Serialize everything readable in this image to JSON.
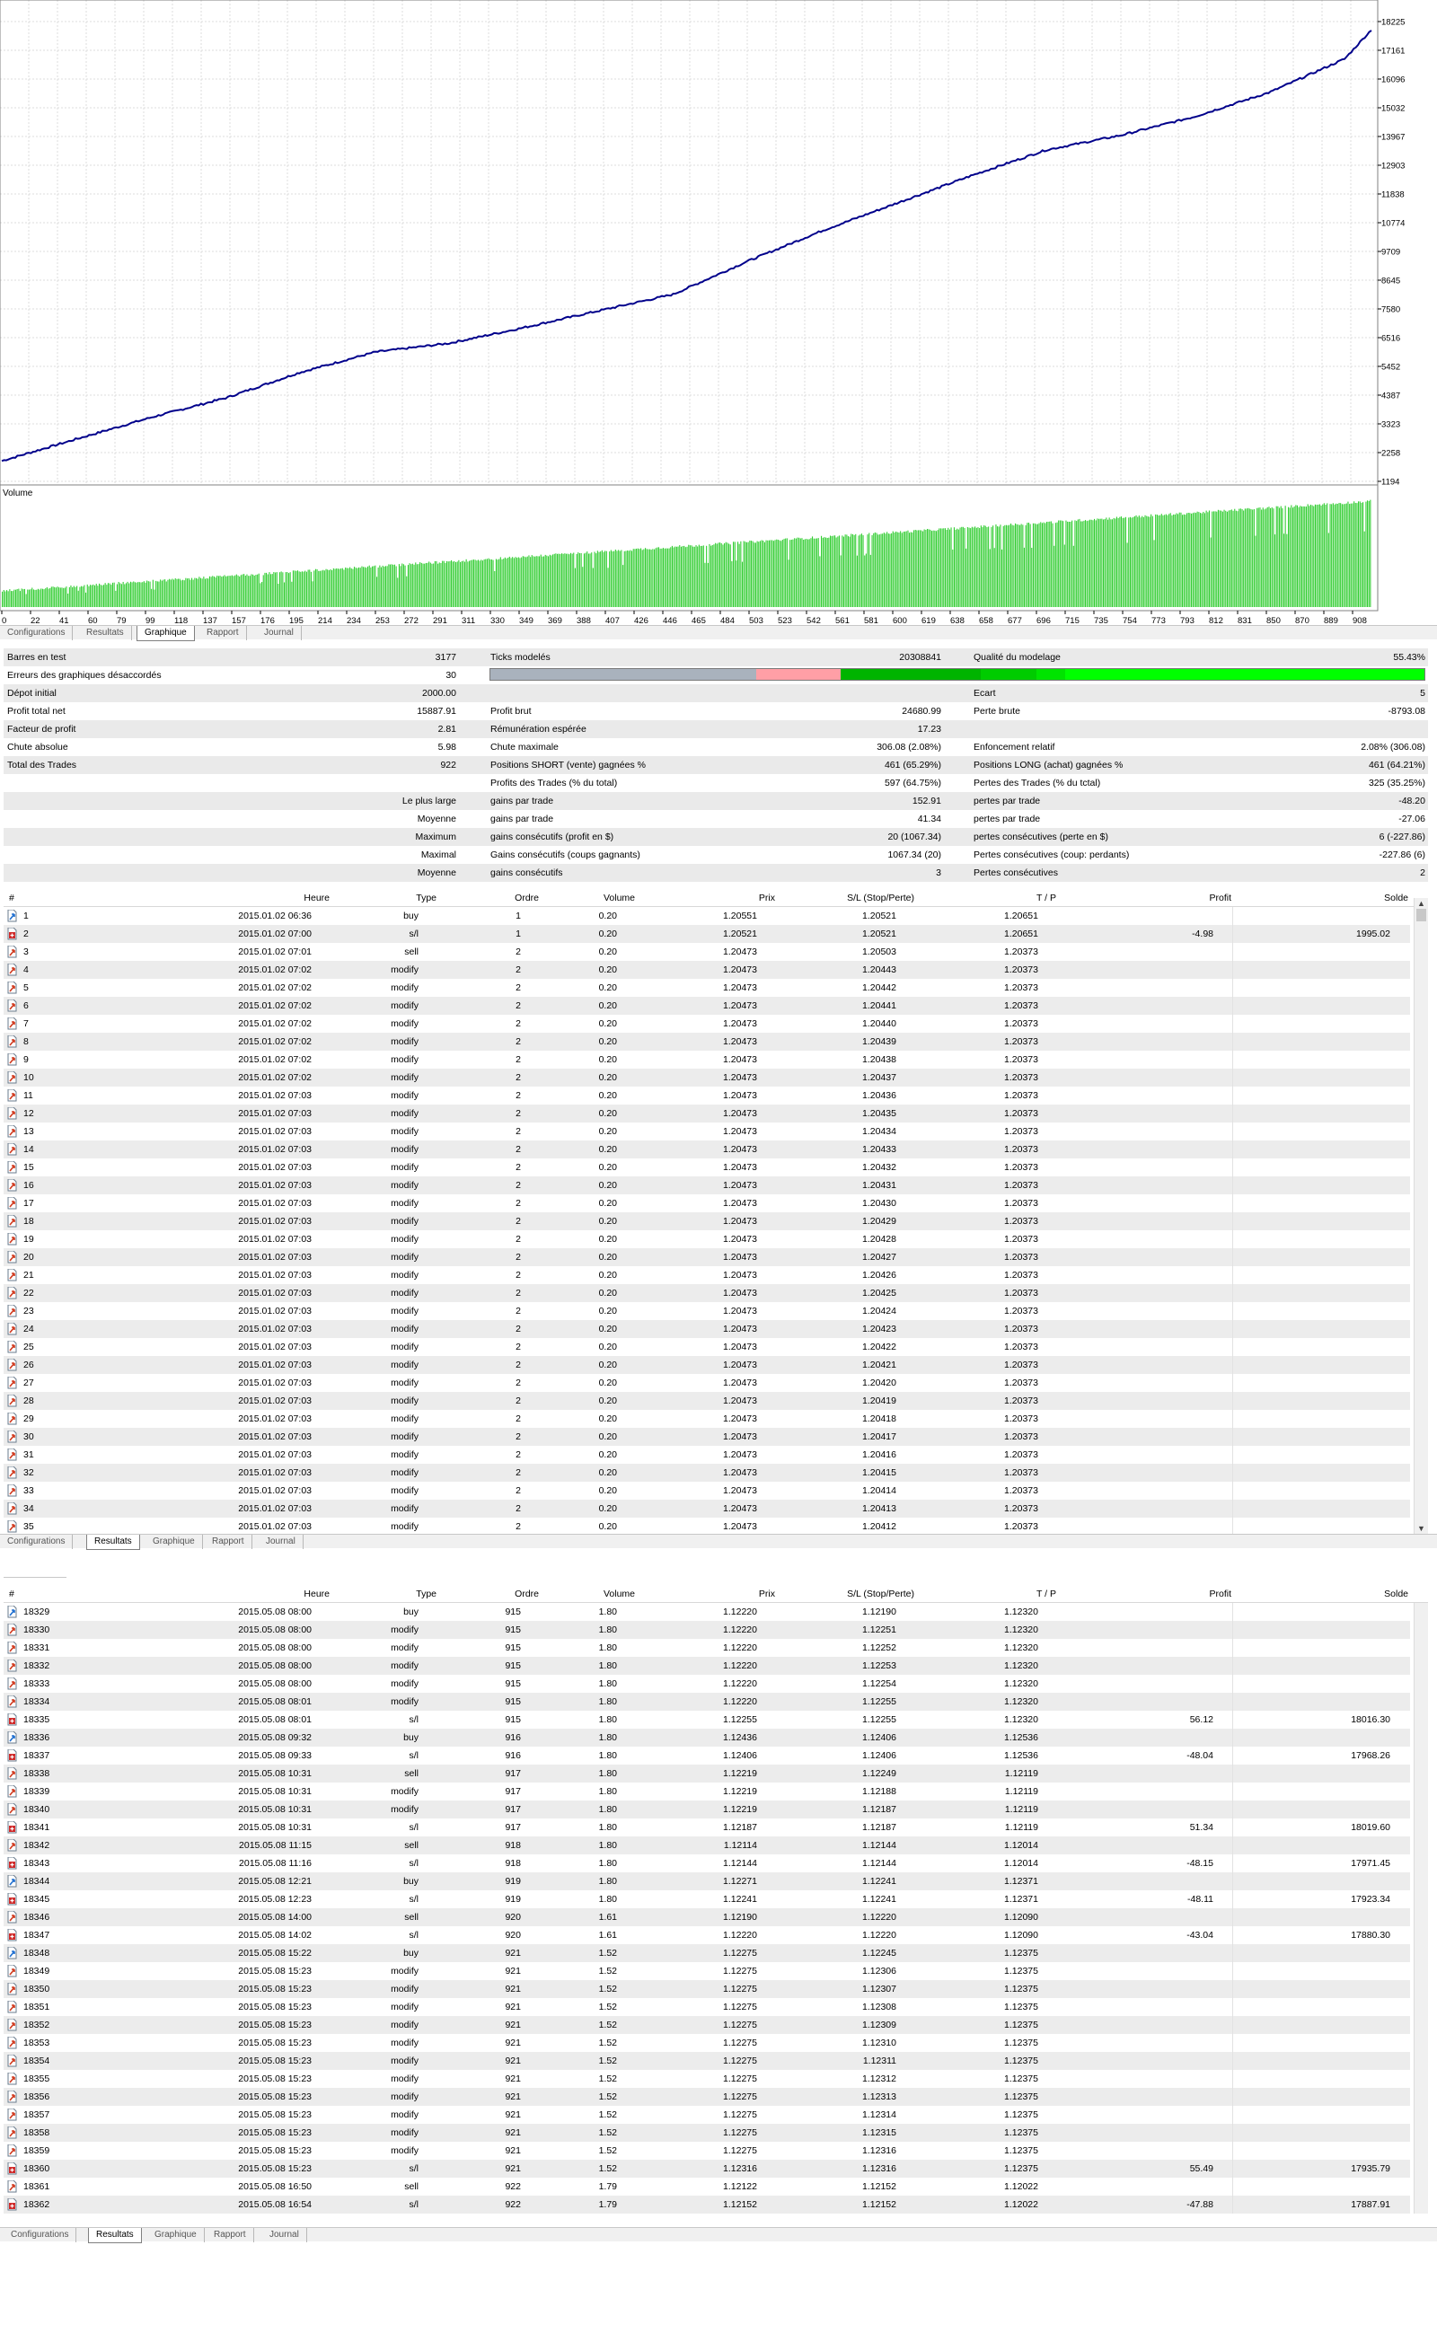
{
  "chart": {
    "equity_axis_labels": [
      "18225",
      "17161",
      "16096",
      "15032",
      "13967",
      "12903",
      "11838",
      "10774",
      "9709",
      "8645",
      "7580",
      "6516",
      "5452",
      "4387",
      "3323",
      "2258",
      "1194"
    ],
    "volume_label": "Volume",
    "x_axis_labels": [
      "0",
      "22",
      "41",
      "60",
      "79",
      "99",
      "118",
      "137",
      "157",
      "176",
      "195",
      "214",
      "234",
      "253",
      "272",
      "291",
      "311",
      "330",
      "349",
      "369",
      "388",
      "407",
      "426",
      "446",
      "465",
      "484",
      "503",
      "523",
      "542",
      "561",
      "581",
      "600",
      "619",
      "638",
      "658",
      "677",
      "696",
      "715",
      "735",
      "754",
      "773",
      "793",
      "812",
      "831",
      "850",
      "870",
      "889",
      "908"
    ],
    "equity_color": "#00008b",
    "volume_color": "#32cd32",
    "grid_color": "#dcdcdc"
  },
  "chart_data": {
    "type": "line",
    "series": [
      {
        "name": "",
        "x": [
          0,
          50,
          100,
          150,
          200,
          250,
          300,
          350,
          400,
          450,
          500,
          550,
          600,
          650,
          700,
          750,
          800,
          850,
          900,
          918
        ],
        "values": [
          1950,
          2760,
          3560,
          4280,
          5230,
          5980,
          6310,
          6890,
          7510,
          8120,
          9350,
          10480,
          11500,
          12520,
          13470,
          14010,
          14710,
          15610,
          16840,
          17920
        ]
      }
    ],
    "ylim": [
      1194,
      18225
    ],
    "xlim": [
      0,
      918
    ]
  },
  "tabs_top": [
    "Configurations",
    "Resultats",
    "Graphique",
    "Rapport",
    "Journal"
  ],
  "report": {
    "rows": [
      {
        "c1": "Barres en test",
        "v1": "3177",
        "c2": "Ticks modelés",
        "v2": "20308841",
        "c3": "Qualité du modelage",
        "v3": "55.43%"
      },
      {
        "c1": "Erreurs des graphiques désaccordés",
        "v1": "30",
        "c2": "",
        "v2": "",
        "c3": "",
        "v3": ""
      },
      {
        "c1": "Dépot initial",
        "v1": "2000.00",
        "c2": "",
        "v2": "",
        "c3": "Ecart",
        "v3": "5"
      },
      {
        "c1": "Profit total net",
        "v1": "15887.91",
        "c2": "Profit brut",
        "v2": "24680.99",
        "c3": "Perte brute",
        "v3": "-8793.08"
      },
      {
        "c1": "Facteur de profit",
        "v1": "2.81",
        "c2": "Rémunération espérée",
        "v2": "17.23",
        "c3": "",
        "v3": ""
      },
      {
        "c1": "Chute absolue",
        "v1": "5.98",
        "c2": "Chute maximale",
        "v2": "306.08 (2.08%)",
        "c3": "Enfoncement relatif",
        "v3": "2.08% (306.08)"
      },
      {
        "c1": "Total des Trades",
        "v1": "922",
        "c2": "Positions SHORT (vente) gagnées %",
        "v2": "461 (65.29%)",
        "c3": "Positions LONG (achat) gagnées %",
        "v3": "461 (64.21%)"
      },
      {
        "c1": "",
        "v1": "",
        "c2": "Profits des Trades (% du total)",
        "v2": "597 (64.75%)",
        "c3": "Pertes des Trades (% du tctal)",
        "v3": "325 (35.25%)"
      },
      {
        "c1": "",
        "v1": "Le plus large",
        "c2": "gains par trade",
        "v2": "152.91",
        "c3": "pertes par trade",
        "v3": "-48.20"
      },
      {
        "c1": "",
        "v1": "Moyenne",
        "c2": "gains par trade",
        "v2": "41.34",
        "c3": "pertes par trade",
        "v3": "-27.06"
      },
      {
        "c1": "",
        "v1": "Maximum",
        "c2": "gains consécutifs (profit en $)",
        "v2": "20 (1067.34)",
        "c3": "pertes consécutives (perte en $)",
        "v3": "6 (-227.86)"
      },
      {
        "c1": "",
        "v1": "Maximal",
        "c2": "Gains consécutifs (coups gagnants)",
        "v2": "1067.34 (20)",
        "c3": "Pertes consécutives (coup: perdants)",
        "v3": "-227.86 (6)"
      },
      {
        "c1": "",
        "v1": "Moyenne",
        "c2": "gains consécutifs",
        "v2": "3",
        "c3": "Pertes consécutives",
        "v3": "2"
      }
    ],
    "quality_colors": [
      "#a9b2bd",
      "#ff9fa6",
      "#00b400",
      "#00cc00",
      "#00e400",
      "#00ff00"
    ],
    "quality_fractions": [
      0.285,
      0.09,
      0.15,
      0.06,
      0.03,
      0.385
    ]
  },
  "table_headers": {
    "n": "#",
    "time": "Heure",
    "type": "Type",
    "order": "Ordre",
    "volume": "Volume",
    "price": "Prix",
    "sl": "S/L (Stop/Perte)",
    "tp": "T / P",
    "profit": "Profit",
    "balance": "Solde"
  },
  "table1": {
    "rows": [
      [
        "1",
        "2015.01.02 06:36",
        "buy",
        "1",
        "0.20",
        "1.20551",
        "1.20521",
        "1.20651",
        "",
        ""
      ],
      [
        "2",
        "2015.01.02 07:00",
        "s/l",
        "1",
        "0.20",
        "1.20521",
        "1.20521",
        "1.20651",
        "-4.98",
        "1995.02"
      ],
      [
        "3",
        "2015.01.02 07:01",
        "sell",
        "2",
        "0.20",
        "1.20473",
        "1.20503",
        "1.20373",
        "",
        ""
      ],
      [
        "4",
        "2015.01.02 07:02",
        "modify",
        "2",
        "0.20",
        "1.20473",
        "1.20443",
        "1.20373",
        "",
        ""
      ],
      [
        "5",
        "2015.01.02 07:02",
        "modify",
        "2",
        "0.20",
        "1.20473",
        "1.20442",
        "1.20373",
        "",
        ""
      ],
      [
        "6",
        "2015.01.02 07:02",
        "modify",
        "2",
        "0.20",
        "1.20473",
        "1.20441",
        "1.20373",
        "",
        ""
      ],
      [
        "7",
        "2015.01.02 07:02",
        "modify",
        "2",
        "0.20",
        "1.20473",
        "1.20440",
        "1.20373",
        "",
        ""
      ],
      [
        "8",
        "2015.01.02 07:02",
        "modify",
        "2",
        "0.20",
        "1.20473",
        "1.20439",
        "1.20373",
        "",
        ""
      ],
      [
        "9",
        "2015.01.02 07:02",
        "modify",
        "2",
        "0.20",
        "1.20473",
        "1.20438",
        "1.20373",
        "",
        ""
      ],
      [
        "10",
        "2015.01.02 07:02",
        "modify",
        "2",
        "0.20",
        "1.20473",
        "1.20437",
        "1.20373",
        "",
        ""
      ],
      [
        "11",
        "2015.01.02 07:03",
        "modify",
        "2",
        "0.20",
        "1.20473",
        "1.20436",
        "1.20373",
        "",
        ""
      ],
      [
        "12",
        "2015.01.02 07:03",
        "modify",
        "2",
        "0.20",
        "1.20473",
        "1.20435",
        "1.20373",
        "",
        ""
      ],
      [
        "13",
        "2015.01.02 07:03",
        "modify",
        "2",
        "0.20",
        "1.20473",
        "1.20434",
        "1.20373",
        "",
        ""
      ],
      [
        "14",
        "2015.01.02 07:03",
        "modify",
        "2",
        "0.20",
        "1.20473",
        "1.20433",
        "1.20373",
        "",
        ""
      ],
      [
        "15",
        "2015.01.02 07:03",
        "modify",
        "2",
        "0.20",
        "1.20473",
        "1.20432",
        "1.20373",
        "",
        ""
      ],
      [
        "16",
        "2015.01.02 07:03",
        "modify",
        "2",
        "0.20",
        "1.20473",
        "1.20431",
        "1.20373",
        "",
        ""
      ],
      [
        "17",
        "2015.01.02 07:03",
        "modify",
        "2",
        "0.20",
        "1.20473",
        "1.20430",
        "1.20373",
        "",
        ""
      ],
      [
        "18",
        "2015.01.02 07:03",
        "modify",
        "2",
        "0.20",
        "1.20473",
        "1.20429",
        "1.20373",
        "",
        ""
      ],
      [
        "19",
        "2015.01.02 07:03",
        "modify",
        "2",
        "0.20",
        "1.20473",
        "1.20428",
        "1.20373",
        "",
        ""
      ],
      [
        "20",
        "2015.01.02 07:03",
        "modify",
        "2",
        "0.20",
        "1.20473",
        "1.20427",
        "1.20373",
        "",
        ""
      ],
      [
        "21",
        "2015.01.02 07:03",
        "modify",
        "2",
        "0.20",
        "1.20473",
        "1.20426",
        "1.20373",
        "",
        ""
      ],
      [
        "22",
        "2015.01.02 07:03",
        "modify",
        "2",
        "0.20",
        "1.20473",
        "1.20425",
        "1.20373",
        "",
        ""
      ],
      [
        "23",
        "2015.01.02 07:03",
        "modify",
        "2",
        "0.20",
        "1.20473",
        "1.20424",
        "1.20373",
        "",
        ""
      ],
      [
        "24",
        "2015.01.02 07:03",
        "modify",
        "2",
        "0.20",
        "1.20473",
        "1.20423",
        "1.20373",
        "",
        ""
      ],
      [
        "25",
        "2015.01.02 07:03",
        "modify",
        "2",
        "0.20",
        "1.20473",
        "1.20422",
        "1.20373",
        "",
        ""
      ],
      [
        "26",
        "2015.01.02 07:03",
        "modify",
        "2",
        "0.20",
        "1.20473",
        "1.20421",
        "1.20373",
        "",
        ""
      ],
      [
        "27",
        "2015.01.02 07:03",
        "modify",
        "2",
        "0.20",
        "1.20473",
        "1.20420",
        "1.20373",
        "",
        ""
      ],
      [
        "28",
        "2015.01.02 07:03",
        "modify",
        "2",
        "0.20",
        "1.20473",
        "1.20419",
        "1.20373",
        "",
        ""
      ],
      [
        "29",
        "2015.01.02 07:03",
        "modify",
        "2",
        "0.20",
        "1.20473",
        "1.20418",
        "1.20373",
        "",
        ""
      ],
      [
        "30",
        "2015.01.02 07:03",
        "modify",
        "2",
        "0.20",
        "1.20473",
        "1.20417",
        "1.20373",
        "",
        ""
      ],
      [
        "31",
        "2015.01.02 07:03",
        "modify",
        "2",
        "0.20",
        "1.20473",
        "1.20416",
        "1.20373",
        "",
        ""
      ],
      [
        "32",
        "2015.01.02 07:03",
        "modify",
        "2",
        "0.20",
        "1.20473",
        "1.20415",
        "1.20373",
        "",
        ""
      ],
      [
        "33",
        "2015.01.02 07:03",
        "modify",
        "2",
        "0.20",
        "1.20473",
        "1.20414",
        "1.20373",
        "",
        ""
      ],
      [
        "34",
        "2015.01.02 07:03",
        "modify",
        "2",
        "0.20",
        "1.20473",
        "1.20413",
        "1.20373",
        "",
        ""
      ],
      [
        "35",
        "2015.01.02 07:03",
        "modify",
        "2",
        "0.20",
        "1.20473",
        "1.20412",
        "1.20373",
        "",
        ""
      ]
    ]
  },
  "tabs_mid": [
    "Configurations",
    "Resultats",
    "Graphique",
    "Rapport",
    "Journal"
  ],
  "table2": {
    "rows": [
      [
        "18329",
        "2015.05.08 08:00",
        "buy",
        "915",
        "1.80",
        "1.12220",
        "1.12190",
        "1.12320",
        "",
        ""
      ],
      [
        "18330",
        "2015.05.08 08:00",
        "modify",
        "915",
        "1.80",
        "1.12220",
        "1.12251",
        "1.12320",
        "",
        ""
      ],
      [
        "18331",
        "2015.05.08 08:00",
        "modify",
        "915",
        "1.80",
        "1.12220",
        "1.12252",
        "1.12320",
        "",
        ""
      ],
      [
        "18332",
        "2015.05.08 08:00",
        "modify",
        "915",
        "1.80",
        "1.12220",
        "1.12253",
        "1.12320",
        "",
        ""
      ],
      [
        "18333",
        "2015.05.08 08:00",
        "modify",
        "915",
        "1.80",
        "1.12220",
        "1.12254",
        "1.12320",
        "",
        ""
      ],
      [
        "18334",
        "2015.05.08 08:01",
        "modify",
        "915",
        "1.80",
        "1.12220",
        "1.12255",
        "1.12320",
        "",
        ""
      ],
      [
        "18335",
        "2015.05.08 08:01",
        "s/l",
        "915",
        "1.80",
        "1.12255",
        "1.12255",
        "1.12320",
        "56.12",
        "18016.30"
      ],
      [
        "18336",
        "2015.05.08 09:32",
        "buy",
        "916",
        "1.80",
        "1.12436",
        "1.12406",
        "1.12536",
        "",
        ""
      ],
      [
        "18337",
        "2015.05.08 09:33",
        "s/l",
        "916",
        "1.80",
        "1.12406",
        "1.12406",
        "1.12536",
        "-48.04",
        "17968.26"
      ],
      [
        "18338",
        "2015.05.08 10:31",
        "sell",
        "917",
        "1.80",
        "1.12219",
        "1.12249",
        "1.12119",
        "",
        ""
      ],
      [
        "18339",
        "2015.05.08 10:31",
        "modify",
        "917",
        "1.80",
        "1.12219",
        "1.12188",
        "1.12119",
        "",
        ""
      ],
      [
        "18340",
        "2015.05.08 10:31",
        "modify",
        "917",
        "1.80",
        "1.12219",
        "1.12187",
        "1.12119",
        "",
        ""
      ],
      [
        "18341",
        "2015.05.08 10:31",
        "s/l",
        "917",
        "1.80",
        "1.12187",
        "1.12187",
        "1.12119",
        "51.34",
        "18019.60"
      ],
      [
        "18342",
        "2015.05.08 11:15",
        "sell",
        "918",
        "1.80",
        "1.12114",
        "1.12144",
        "1.12014",
        "",
        ""
      ],
      [
        "18343",
        "2015.05.08 11:16",
        "s/l",
        "918",
        "1.80",
        "1.12144",
        "1.12144",
        "1.12014",
        "-48.15",
        "17971.45"
      ],
      [
        "18344",
        "2015.05.08 12:21",
        "buy",
        "919",
        "1.80",
        "1.12271",
        "1.12241",
        "1.12371",
        "",
        ""
      ],
      [
        "18345",
        "2015.05.08 12:23",
        "s/l",
        "919",
        "1.80",
        "1.12241",
        "1.12241",
        "1.12371",
        "-48.11",
        "17923.34"
      ],
      [
        "18346",
        "2015.05.08 14:00",
        "sell",
        "920",
        "1.61",
        "1.12190",
        "1.12220",
        "1.12090",
        "",
        ""
      ],
      [
        "18347",
        "2015.05.08 14:02",
        "s/l",
        "920",
        "1.61",
        "1.12220",
        "1.12220",
        "1.12090",
        "-43.04",
        "17880.30"
      ],
      [
        "18348",
        "2015.05.08 15:22",
        "buy",
        "921",
        "1.52",
        "1.12275",
        "1.12245",
        "1.12375",
        "",
        ""
      ],
      [
        "18349",
        "2015.05.08 15:23",
        "modify",
        "921",
        "1.52",
        "1.12275",
        "1.12306",
        "1.12375",
        "",
        ""
      ],
      [
        "18350",
        "2015.05.08 15:23",
        "modify",
        "921",
        "1.52",
        "1.12275",
        "1.12307",
        "1.12375",
        "",
        ""
      ],
      [
        "18351",
        "2015.05.08 15:23",
        "modify",
        "921",
        "1.52",
        "1.12275",
        "1.12308",
        "1.12375",
        "",
        ""
      ],
      [
        "18352",
        "2015.05.08 15:23",
        "modify",
        "921",
        "1.52",
        "1.12275",
        "1.12309",
        "1.12375",
        "",
        ""
      ],
      [
        "18353",
        "2015.05.08 15:23",
        "modify",
        "921",
        "1.52",
        "1.12275",
        "1.12310",
        "1.12375",
        "",
        ""
      ],
      [
        "18354",
        "2015.05.08 15:23",
        "modify",
        "921",
        "1.52",
        "1.12275",
        "1.12311",
        "1.12375",
        "",
        ""
      ],
      [
        "18355",
        "2015.05.08 15:23",
        "modify",
        "921",
        "1.52",
        "1.12275",
        "1.12312",
        "1.12375",
        "",
        ""
      ],
      [
        "18356",
        "2015.05.08 15:23",
        "modify",
        "921",
        "1.52",
        "1.12275",
        "1.12313",
        "1.12375",
        "",
        ""
      ],
      [
        "18357",
        "2015.05.08 15:23",
        "modify",
        "921",
        "1.52",
        "1.12275",
        "1.12314",
        "1.12375",
        "",
        ""
      ],
      [
        "18358",
        "2015.05.08 15:23",
        "modify",
        "921",
        "1.52",
        "1.12275",
        "1.12315",
        "1.12375",
        "",
        ""
      ],
      [
        "18359",
        "2015.05.08 15:23",
        "modify",
        "921",
        "1.52",
        "1.12275",
        "1.12316",
        "1.12375",
        "",
        ""
      ],
      [
        "18360",
        "2015.05.08 15:23",
        "s/l",
        "921",
        "1.52",
        "1.12316",
        "1.12316",
        "1.12375",
        "55.49",
        "17935.79"
      ],
      [
        "18361",
        "2015.05.08 16:50",
        "sell",
        "922",
        "1.79",
        "1.12122",
        "1.12152",
        "1.12022",
        "",
        ""
      ],
      [
        "18362",
        "2015.05.08 16:54",
        "s/l",
        "922",
        "1.79",
        "1.12152",
        "1.12152",
        "1.12022",
        "-47.88",
        "17887.91"
      ]
    ]
  },
  "tabs_bottom": [
    "Configurations",
    "Resultats",
    "Graphique",
    "Rapport",
    "Journal"
  ]
}
